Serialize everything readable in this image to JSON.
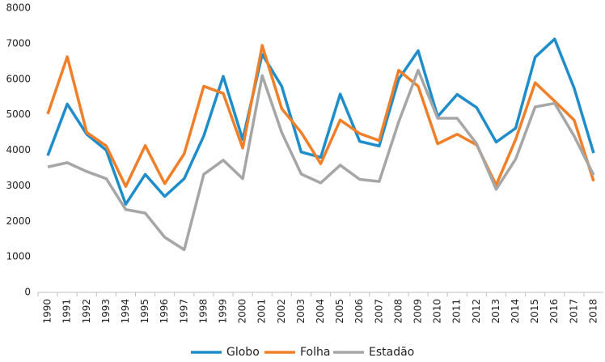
{
  "chart_data": {
    "type": "line",
    "categories": [
      "1990",
      "1991",
      "1992",
      "1993",
      "1994",
      "1995",
      "1996",
      "1997",
      "1998",
      "1999",
      "2000",
      "2001",
      "2002",
      "2003",
      "2004",
      "2005",
      "2006",
      "2007",
      "2008",
      "2009",
      "2010",
      "2011",
      "2012",
      "2013",
      "2014",
      "2015",
      "2016",
      "2017",
      "2018"
    ],
    "series": [
      {
        "name": "Globo",
        "color": "#1f8dc9",
        "values": [
          3850,
          5300,
          4450,
          4000,
          2480,
          3320,
          2700,
          3200,
          4400,
          6080,
          4300,
          6700,
          5800,
          3950,
          3800,
          5580,
          4250,
          4120,
          6000,
          6800,
          4950,
          5570,
          5200,
          4230,
          4620,
          6620,
          7130,
          5750,
          3920
        ]
      },
      {
        "name": "Folha",
        "color": "#f07f2a",
        "values": [
          5020,
          6630,
          4500,
          4120,
          2980,
          4130,
          3060,
          3900,
          5800,
          5600,
          4060,
          6950,
          5170,
          4500,
          3620,
          4850,
          4470,
          4270,
          6250,
          5800,
          4180,
          4450,
          4150,
          3020,
          4300,
          5900,
          5380,
          4850,
          3130
        ]
      },
      {
        "name": "Estadão",
        "color": "#a6a6a6",
        "values": [
          3530,
          3650,
          3400,
          3200,
          2330,
          2230,
          1550,
          1200,
          3320,
          3720,
          3200,
          6100,
          4500,
          3330,
          3080,
          3580,
          3180,
          3120,
          4800,
          6250,
          4900,
          4900,
          4180,
          2900,
          3750,
          5220,
          5320,
          4400,
          3300
        ]
      }
    ],
    "ylim": [
      0,
      8000
    ],
    "yticks": [
      0,
      1000,
      2000,
      3000,
      4000,
      5000,
      6000,
      7000,
      8000
    ],
    "grid": false,
    "legend": "bottom"
  }
}
